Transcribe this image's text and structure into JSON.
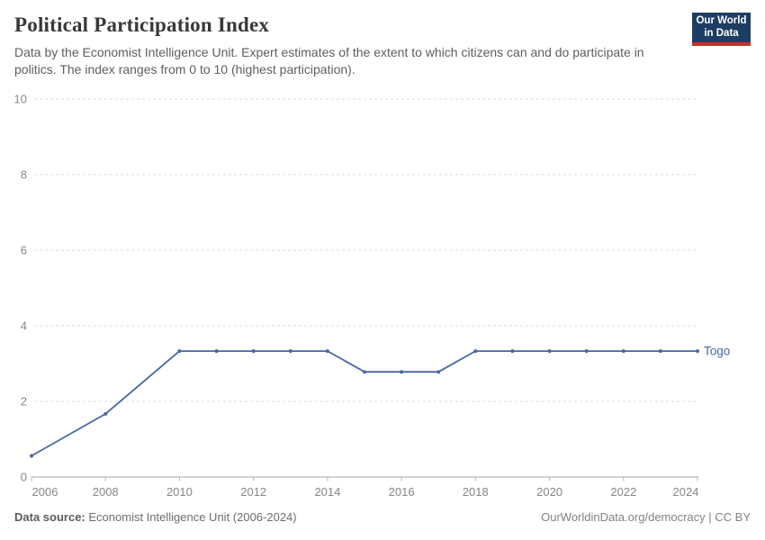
{
  "header": {
    "title": "Political Participation Index",
    "subtitle": "Data by the Economist Intelligence Unit. Expert estimates of the extent to which citizens can and do participate in politics. The index ranges from 0 to 10 (highest participation).",
    "logo": {
      "line1": "Our World",
      "line2": "in Data",
      "bg_color": "#1d3d63",
      "stripe_color": "#c5302b"
    }
  },
  "footer": {
    "source_label": "Data source:",
    "source_text": "Economist Intelligence Unit (2006-2024)",
    "link_text": "OurWorldinData.org/democracy | CC BY"
  },
  "chart_data": {
    "type": "line",
    "title": "Political Participation Index",
    "xlabel": "",
    "ylabel": "",
    "grid": "horizontal-dashed",
    "legend": "end-of-line-label",
    "x": {
      "min": 2006,
      "max": 2024,
      "ticks": [
        2006,
        2008,
        2010,
        2012,
        2014,
        2016,
        2018,
        2020,
        2022,
        2024
      ],
      "first_label_offset": 15,
      "last_label_offset": -13
    },
    "y": {
      "min": 0,
      "max": 10,
      "ticks": [
        0,
        2,
        4,
        6,
        8,
        10
      ]
    },
    "series": [
      {
        "name": "Togo",
        "color": "#4667A5",
        "points": [
          [
            2006,
            0.56
          ],
          [
            2008,
            1.67
          ],
          [
            2010,
            3.33
          ],
          [
            2011,
            3.33
          ],
          [
            2012,
            3.33
          ],
          [
            2013,
            3.33
          ],
          [
            2014,
            3.33
          ],
          [
            2015,
            2.78
          ],
          [
            2016,
            2.78
          ],
          [
            2017,
            2.78
          ],
          [
            2018,
            3.33
          ],
          [
            2019,
            3.33
          ],
          [
            2020,
            3.33
          ],
          [
            2021,
            3.33
          ],
          [
            2022,
            3.33
          ],
          [
            2023,
            3.33
          ],
          [
            2024,
            3.33
          ]
        ]
      }
    ]
  }
}
